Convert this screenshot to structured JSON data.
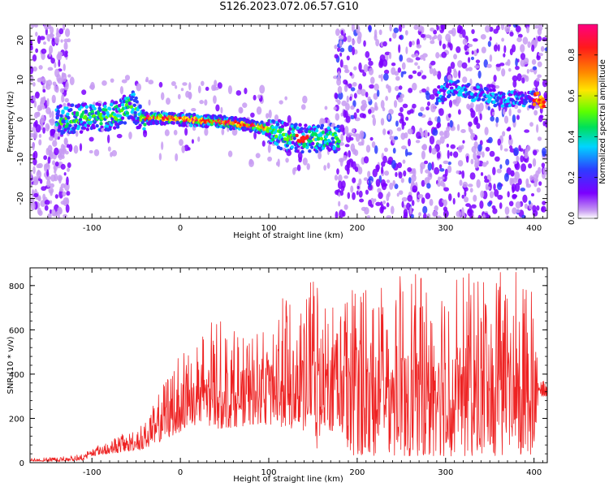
{
  "figure": {
    "title": "S126.2023.072.06.57.G10"
  },
  "chart_data": [
    {
      "type": "heatmap",
      "name": "spectrogram",
      "xlabel": "Height of straight line (km)",
      "ylabel": "Frequency (Hz)",
      "xlim": [
        -170,
        415
      ],
      "ylim": [
        -25,
        24
      ],
      "xticks": [
        -100,
        0,
        100,
        200,
        300,
        400
      ],
      "yticks": [
        -20,
        -10,
        0,
        10,
        20
      ],
      "grid": false,
      "colorbar": {
        "label": "Normalized spectral amplitude",
        "range": [
          0.0,
          0.95
        ],
        "ticks": [
          "0.0",
          "0.2",
          "0.4",
          "0.6",
          "0.8"
        ],
        "colormap": "rainbow (white-purple-blue-cyan-green-yellow-orange-red-magenta)",
        "colors": [
          "#ffffff",
          "#c79bf2",
          "#7b00ff",
          "#2d3cff",
          "#00d5ff",
          "#00e05a",
          "#5cff00",
          "#ffe600",
          "#ff8a00",
          "#ff1a1a",
          "#ff0080"
        ]
      },
      "ridge": {
        "description_points_x": [
          -130,
          -100,
          -70,
          -55,
          -45,
          -30,
          0,
          40,
          80,
          100,
          120,
          140,
          170,
          180
        ],
        "description_points_y": [
          0,
          0.5,
          1,
          4,
          0,
          0.5,
          0,
          -0.5,
          -1.5,
          -2.5,
          -4.5,
          -5,
          -4.5,
          -5
        ],
        "upper_segment_x": [
          290,
          310,
          340,
          370,
          400,
          412
        ],
        "upper_segment_y": [
          6,
          8,
          6,
          5,
          5,
          5
        ]
      }
    },
    {
      "type": "line",
      "name": "snr",
      "xlabel": "Height of straight line (km)",
      "ylabel": "SNR (10 * v/v)",
      "xlim": [
        -170,
        415
      ],
      "ylim": [
        0,
        880
      ],
      "xticks": [
        -100,
        0,
        100,
        200,
        300,
        400
      ],
      "yticks": [
        0,
        200,
        400,
        600,
        800
      ],
      "grid": false,
      "series_color": "#ee2222",
      "envelope_x": [
        -170,
        -140,
        -110,
        -100,
        -80,
        -60,
        -40,
        -20,
        0,
        20,
        40,
        60,
        80,
        100,
        120,
        140,
        150,
        155,
        160,
        180,
        190,
        200,
        220,
        240,
        260,
        280,
        300,
        320,
        340,
        360,
        380,
        400,
        405,
        415
      ],
      "envelope_lo": [
        5,
        5,
        10,
        30,
        40,
        50,
        60,
        100,
        140,
        160,
        150,
        160,
        170,
        170,
        160,
        140,
        120,
        20,
        150,
        140,
        40,
        30,
        30,
        30,
        30,
        30,
        30,
        30,
        30,
        30,
        30,
        30,
        300,
        300
      ],
      "envelope_hi": [
        20,
        25,
        40,
        70,
        100,
        140,
        180,
        350,
        500,
        560,
        660,
        600,
        580,
        620,
        780,
        700,
        870,
        860,
        740,
        720,
        800,
        860,
        860,
        840,
        860,
        830,
        840,
        860,
        860,
        860,
        870,
        840,
        380,
        360
      ]
    }
  ]
}
